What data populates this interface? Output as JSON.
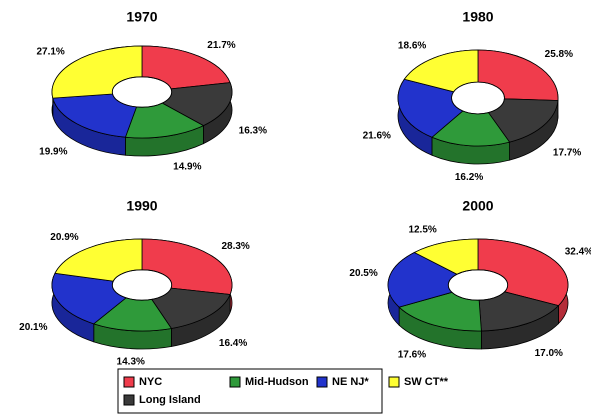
{
  "chart_data": [
    {
      "type": "doughnut3d",
      "title": "1970",
      "categories": [
        "NYC",
        "Mid-Hudson",
        "NE NJ*",
        "SW CT**",
        "Long Island"
      ],
      "colors": [
        "#f03c4c",
        "#2f9a3a",
        "#2233cc",
        "#ffff33",
        "#3a3a3a"
      ],
      "values": [
        21.7,
        14.9,
        19.9,
        27.1,
        16.3
      ],
      "value_labels": [
        "21.7%",
        "14.9%",
        "19.9%",
        "27.1%",
        "16.3%"
      ]
    },
    {
      "type": "doughnut3d",
      "title": "1980",
      "categories": [
        "NYC",
        "Mid-Hudson",
        "NE NJ*",
        "SW CT**",
        "Long Island"
      ],
      "colors": [
        "#f03c4c",
        "#2f9a3a",
        "#2233cc",
        "#ffff33",
        "#3a3a3a"
      ],
      "values": [
        25.8,
        16.2,
        21.6,
        18.6,
        17.7
      ],
      "value_labels": [
        "25.8%",
        "16.2%",
        "21.6%",
        "18.6%",
        "17.7%"
      ]
    },
    {
      "type": "doughnut3d",
      "title": "1990",
      "categories": [
        "NYC",
        "Mid-Hudson",
        "NE NJ*",
        "SW CT**",
        "Long Island"
      ],
      "colors": [
        "#f03c4c",
        "#2f9a3a",
        "#2233cc",
        "#ffff33",
        "#3a3a3a"
      ],
      "values": [
        28.3,
        14.3,
        20.1,
        20.9,
        16.4
      ],
      "value_labels": [
        "28.3%",
        "14.3%",
        "20.1%",
        "20.9%",
        "16.4%"
      ]
    },
    {
      "type": "doughnut3d",
      "title": "2000",
      "categories": [
        "NYC",
        "Mid-Hudson",
        "NE NJ*",
        "SW CT**",
        "Long Island"
      ],
      "colors": [
        "#f03c4c",
        "#2f9a3a",
        "#2233cc",
        "#ffff33",
        "#3a3a3a"
      ],
      "values": [
        32.4,
        17.6,
        20.5,
        12.5,
        17.0
      ],
      "value_labels": [
        "32.4%",
        "17.6%",
        "20.5%",
        "12.5%",
        "17.0%"
      ]
    }
  ]
}
